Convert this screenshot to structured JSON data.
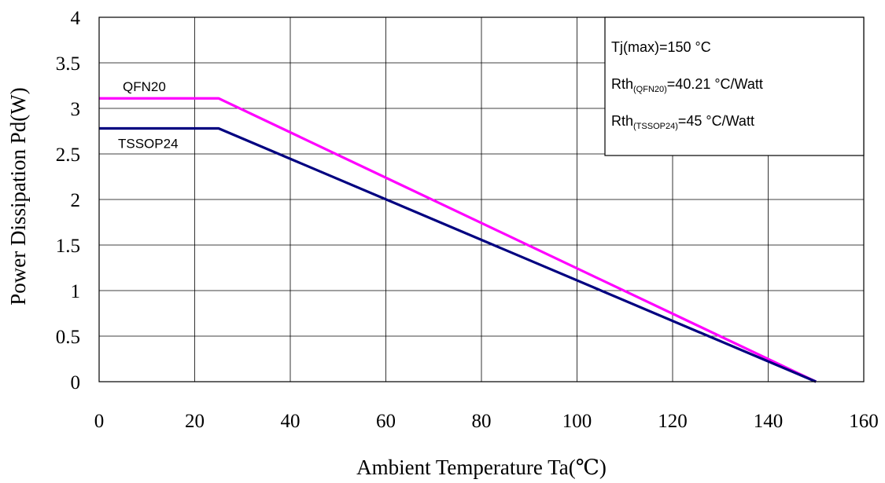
{
  "chart_data": {
    "type": "line",
    "xlabel": "Ambient Temperature Ta(℃)",
    "ylabel": "Power Dissipation Pd(W)",
    "xlim": [
      0,
      160
    ],
    "ylim": [
      0,
      4
    ],
    "x_ticks": [
      0,
      20,
      40,
      60,
      80,
      100,
      120,
      140,
      160
    ],
    "y_ticks": [
      "0",
      "0.5",
      "1",
      "1.5",
      "2",
      "2.5",
      "3",
      "3.5",
      "4"
    ],
    "grid": true,
    "series": [
      {
        "name": "QFN20",
        "color": "#ff00ff",
        "x": [
          0,
          25,
          150
        ],
        "y": [
          3.11,
          3.11,
          0
        ]
      },
      {
        "name": "TSSOP24",
        "color": "#000080",
        "x": [
          0,
          25,
          150
        ],
        "y": [
          2.78,
          2.78,
          0
        ]
      }
    ],
    "annotation_box": {
      "line1": "Tj(max)=150 °C",
      "line2": {
        "main": "Rth",
        "sub": "(QFN20)",
        "rest": "=40.21 °C/Watt"
      },
      "line3": {
        "main": "Rth",
        "sub": "(TSSOP24)",
        "rest": "=45 °C/Watt"
      }
    }
  }
}
